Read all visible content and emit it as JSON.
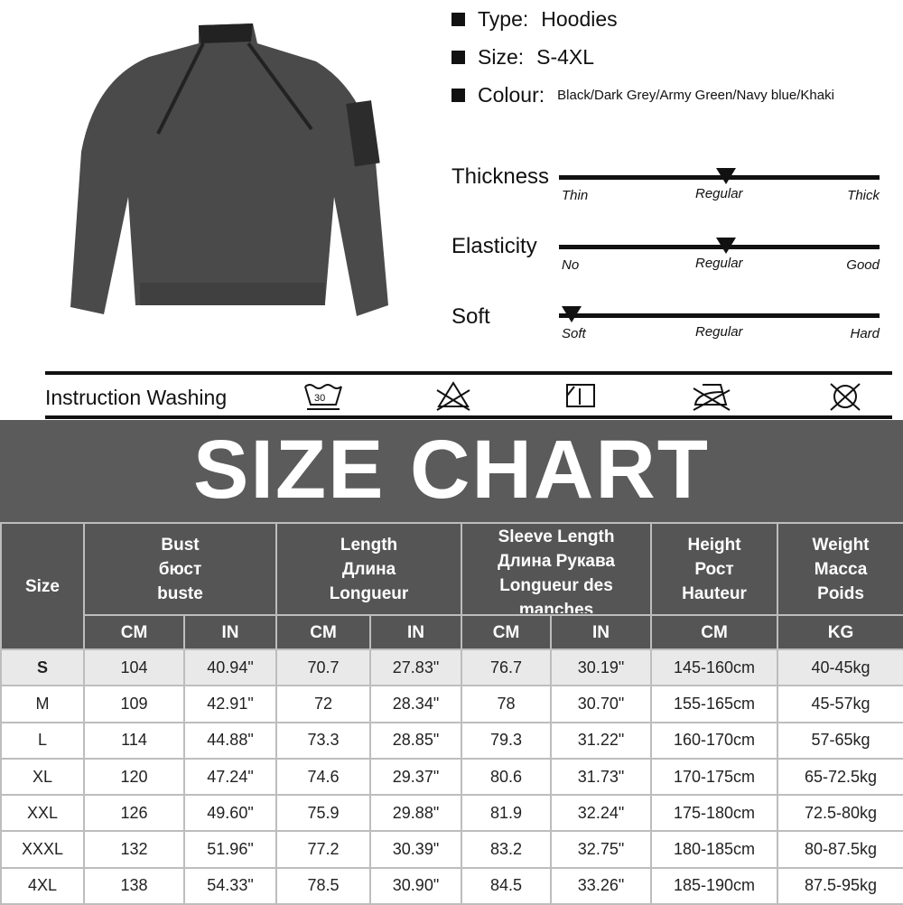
{
  "specs": [
    {
      "label": "Type:",
      "value": "Hoodies"
    },
    {
      "label": "Size:",
      "value": "S-4XL"
    },
    {
      "label": "Colour:",
      "value": "Black/Dark Grey/Army Green/Navy blue/Khaki"
    }
  ],
  "attributes": [
    {
      "name": "Thickness",
      "left": "Thin",
      "mid": "Regular",
      "right": "Thick",
      "level_percent": 52
    },
    {
      "name": "Elasticity",
      "left": "No",
      "mid": "Regular",
      "right": "Good",
      "level_percent": 52
    },
    {
      "name": "Soft",
      "left": "Soft",
      "mid": "Regular",
      "right": "Hard",
      "level_percent": 4
    }
  ],
  "washing": {
    "label": "Instruction Washing",
    "icons": [
      "wash-30-icon",
      "no-bleach-icon",
      "line-dry-icon",
      "no-iron-icon",
      "no-tumble-dry-icon"
    ],
    "wash_temp": "30"
  },
  "size_chart": {
    "title": "SIZE CHART",
    "headers": {
      "size": "Size",
      "bust": [
        "Bust",
        "бюст",
        "buste"
      ],
      "length": [
        "Length",
        "Длина",
        "Longueur"
      ],
      "sleeve": [
        "Sleeve Length",
        "Длина Рукава",
        "Longueur des",
        "manches"
      ],
      "height": [
        "Height",
        "Рост",
        "Hauteur"
      ],
      "weight": [
        "Weight",
        "Масса",
        "Poids"
      ]
    },
    "units": [
      "CM",
      "IN",
      "CM",
      "IN",
      "CM",
      "IN",
      "CM",
      "KG"
    ],
    "rows": [
      [
        "S",
        "104",
        "40.94\"",
        "70.7",
        "27.83\"",
        "76.7",
        "30.19\"",
        "145-160cm",
        "40-45kg"
      ],
      [
        "M",
        "109",
        "42.91\"",
        "72",
        "28.34\"",
        "78",
        "30.70\"",
        "155-165cm",
        "45-57kg"
      ],
      [
        "L",
        "114",
        "44.88\"",
        "73.3",
        "28.85\"",
        "79.3",
        "31.22\"",
        "160-170cm",
        "57-65kg"
      ],
      [
        "XL",
        "120",
        "47.24\"",
        "74.6",
        "29.37\"",
        "80.6",
        "31.73\"",
        "170-175cm",
        "65-72.5kg"
      ],
      [
        "XXL",
        "126",
        "49.60\"",
        "75.9",
        "29.88\"",
        "81.9",
        "32.24\"",
        "175-180cm",
        "72.5-80kg"
      ],
      [
        "XXXL",
        "132",
        "51.96\"",
        "77.2",
        "30.39\"",
        "83.2",
        "32.75\"",
        "180-185cm",
        "80-87.5kg"
      ],
      [
        "4XL",
        "138",
        "54.33\"",
        "78.5",
        "30.90\"",
        "84.5",
        "33.26\"",
        "185-190cm",
        "87.5-95kg"
      ]
    ]
  }
}
